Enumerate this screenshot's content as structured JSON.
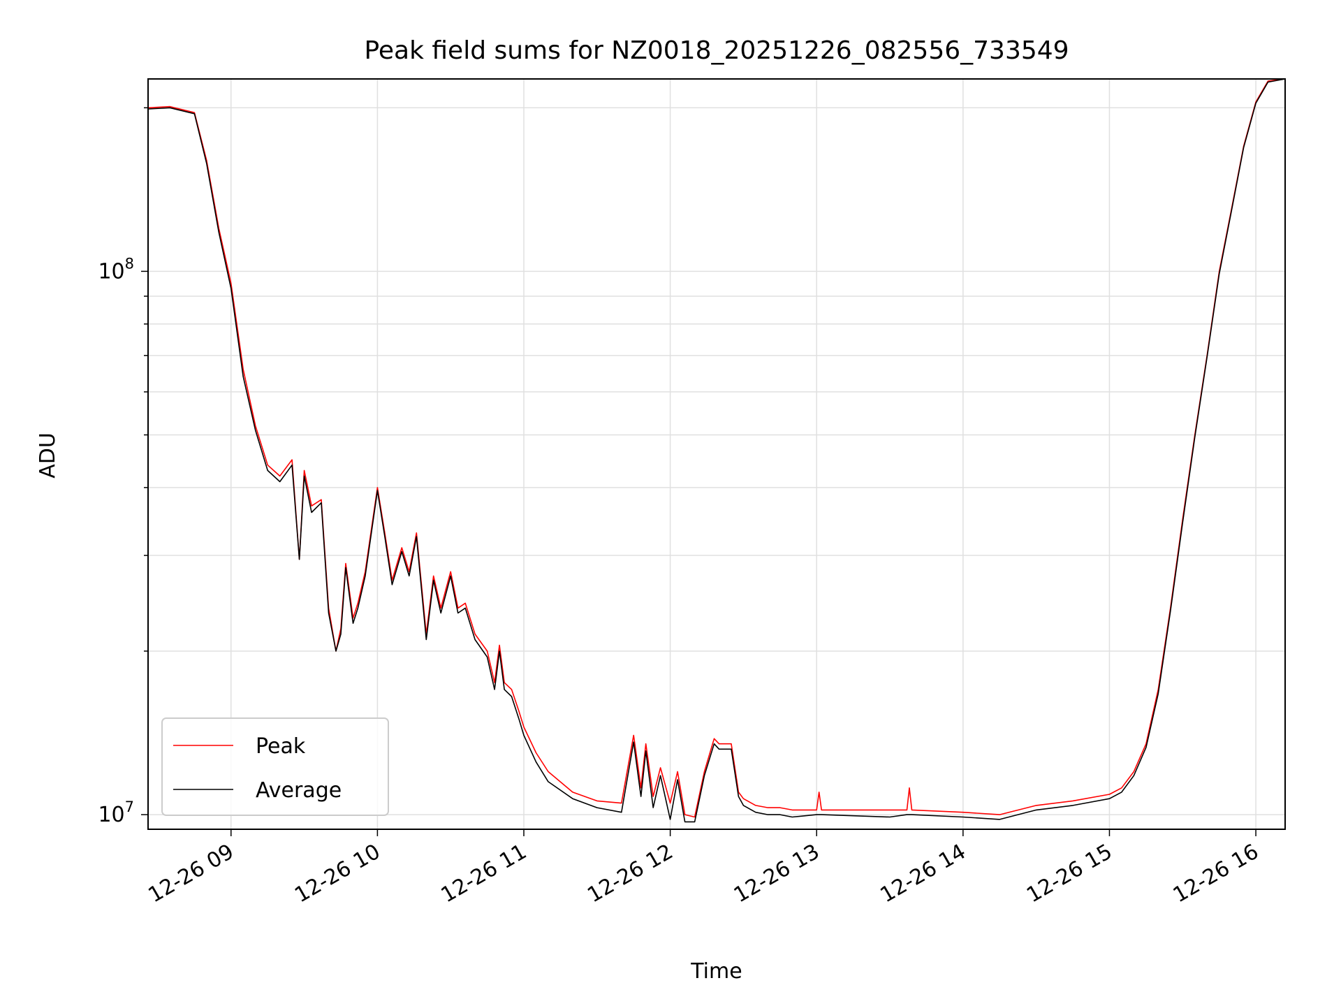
{
  "chart_data": {
    "type": "line",
    "title": "Peak field sums for NZ0018_20251226_082556_733549",
    "xlabel": "Time",
    "ylabel": "ADU",
    "yscale": "log",
    "grid": true,
    "legend_position": "lower-left",
    "xlim": [
      "2025-12-26 08:26",
      "2025-12-26 16:12"
    ],
    "ylim": [
      9400000,
      226000000
    ],
    "x_ticks": [
      {
        "value": "2025-12-26 09:00",
        "label": "12-26 09"
      },
      {
        "value": "2025-12-26 10:00",
        "label": "12-26 10"
      },
      {
        "value": "2025-12-26 11:00",
        "label": "12-26 11"
      },
      {
        "value": "2025-12-26 12:00",
        "label": "12-26 12"
      },
      {
        "value": "2025-12-26 13:00",
        "label": "12-26 13"
      },
      {
        "value": "2025-12-26 14:00",
        "label": "12-26 14"
      },
      {
        "value": "2025-12-26 15:00",
        "label": "12-26 15"
      },
      {
        "value": "2025-12-26 16:00",
        "label": "12-26 16"
      }
    ],
    "y_ticks": [
      {
        "value": 10000000,
        "base": "10",
        "exp": "7"
      },
      {
        "value": 100000000,
        "base": "10",
        "exp": "8"
      }
    ],
    "series": [
      {
        "name": "Peak",
        "color": "#ff0000",
        "x": [
          "2025-12-26 08:26",
          "2025-12-26 08:35",
          "2025-12-26 08:45",
          "2025-12-26 08:50",
          "2025-12-26 08:55",
          "2025-12-26 09:00",
          "2025-12-26 09:05",
          "2025-12-26 09:10",
          "2025-12-26 09:15",
          "2025-12-26 09:20",
          "2025-12-26 09:25",
          "2025-12-26 09:28",
          "2025-12-26 09:30",
          "2025-12-26 09:33",
          "2025-12-26 09:37",
          "2025-12-26 09:40",
          "2025-12-26 09:43",
          "2025-12-26 09:45",
          "2025-12-26 09:47",
          "2025-12-26 09:50",
          "2025-12-26 09:52",
          "2025-12-26 09:55",
          "2025-12-26 10:00",
          "2025-12-26 10:03",
          "2025-12-26 10:06",
          "2025-12-26 10:10",
          "2025-12-26 10:13",
          "2025-12-26 10:16",
          "2025-12-26 10:20",
          "2025-12-26 10:23",
          "2025-12-26 10:26",
          "2025-12-26 10:30",
          "2025-12-26 10:33",
          "2025-12-26 10:36",
          "2025-12-26 10:40",
          "2025-12-26 10:45",
          "2025-12-26 10:48",
          "2025-12-26 10:50",
          "2025-12-26 10:52",
          "2025-12-26 10:55",
          "2025-12-26 10:58",
          "2025-12-26 11:00",
          "2025-12-26 11:05",
          "2025-12-26 11:10",
          "2025-12-26 11:20",
          "2025-12-26 11:30",
          "2025-12-26 11:40",
          "2025-12-26 11:45",
          "2025-12-26 11:48",
          "2025-12-26 11:50",
          "2025-12-26 11:53",
          "2025-12-26 11:56",
          "2025-12-26 12:00",
          "2025-12-26 12:03",
          "2025-12-26 12:06",
          "2025-12-26 12:10",
          "2025-12-26 12:14",
          "2025-12-26 12:18",
          "2025-12-26 12:20",
          "2025-12-26 12:25",
          "2025-12-26 12:28",
          "2025-12-26 12:30",
          "2025-12-26 12:35",
          "2025-12-26 12:40",
          "2025-12-26 12:45",
          "2025-12-26 12:50",
          "2025-12-26 13:00",
          "2025-12-26 13:01",
          "2025-12-26 13:02",
          "2025-12-26 13:30",
          "2025-12-26 13:37",
          "2025-12-26 13:38",
          "2025-12-26 13:39",
          "2025-12-26 14:00",
          "2025-12-26 14:15",
          "2025-12-26 14:30",
          "2025-12-26 14:45",
          "2025-12-26 15:00",
          "2025-12-26 15:05",
          "2025-12-26 15:10",
          "2025-12-26 15:15",
          "2025-12-26 15:20",
          "2025-12-26 15:25",
          "2025-12-26 15:30",
          "2025-12-26 15:35",
          "2025-12-26 15:40",
          "2025-12-26 15:45",
          "2025-12-26 15:50",
          "2025-12-26 15:55",
          "2025-12-26 16:00",
          "2025-12-26 16:05",
          "2025-12-26 16:12"
        ],
        "y": [
          200000000,
          201000000,
          196000000,
          160000000,
          120000000,
          95000000,
          66000000,
          52000000,
          44000000,
          42000000,
          45000000,
          29500000,
          43000000,
          37000000,
          38000000,
          24000000,
          20000000,
          22000000,
          29000000,
          23000000,
          24500000,
          28000000,
          40000000,
          33000000,
          27000000,
          31000000,
          28000000,
          33000000,
          21500000,
          27500000,
          24000000,
          28000000,
          24000000,
          24500000,
          21500000,
          20000000,
          17500000,
          20500000,
          17500000,
          17000000,
          15500000,
          14500000,
          13000000,
          12000000,
          11000000,
          10600000,
          10500000,
          14000000,
          11200000,
          13500000,
          10800000,
          12200000,
          10500000,
          12000000,
          10000000,
          9900000,
          12000000,
          13800000,
          13500000,
          13500000,
          11000000,
          10700000,
          10400000,
          10300000,
          10300000,
          10200000,
          10200000,
          11000000,
          10200000,
          10200000,
          10200000,
          11200000,
          10200000,
          10100000,
          10000000,
          10400000,
          10600000,
          10900000,
          11200000,
          12000000,
          13500000,
          17000000,
          24000000,
          35000000,
          50000000,
          70000000,
          100000000,
          130000000,
          170000000,
          205000000,
          224000000,
          226000000
        ]
      },
      {
        "name": "Average",
        "color": "#000000",
        "x": [
          "2025-12-26 08:26",
          "2025-12-26 08:35",
          "2025-12-26 08:45",
          "2025-12-26 08:50",
          "2025-12-26 08:55",
          "2025-12-26 09:00",
          "2025-12-26 09:05",
          "2025-12-26 09:10",
          "2025-12-26 09:15",
          "2025-12-26 09:20",
          "2025-12-26 09:25",
          "2025-12-26 09:28",
          "2025-12-26 09:30",
          "2025-12-26 09:33",
          "2025-12-26 09:37",
          "2025-12-26 09:40",
          "2025-12-26 09:43",
          "2025-12-26 09:45",
          "2025-12-26 09:47",
          "2025-12-26 09:50",
          "2025-12-26 09:52",
          "2025-12-26 09:55",
          "2025-12-26 10:00",
          "2025-12-26 10:03",
          "2025-12-26 10:06",
          "2025-12-26 10:10",
          "2025-12-26 10:13",
          "2025-12-26 10:16",
          "2025-12-26 10:20",
          "2025-12-26 10:23",
          "2025-12-26 10:26",
          "2025-12-26 10:30",
          "2025-12-26 10:33",
          "2025-12-26 10:36",
          "2025-12-26 10:40",
          "2025-12-26 10:45",
          "2025-12-26 10:48",
          "2025-12-26 10:50",
          "2025-12-26 10:52",
          "2025-12-26 10:55",
          "2025-12-26 10:58",
          "2025-12-26 11:00",
          "2025-12-26 11:05",
          "2025-12-26 11:10",
          "2025-12-26 11:20",
          "2025-12-26 11:30",
          "2025-12-26 11:40",
          "2025-12-26 11:45",
          "2025-12-26 11:48",
          "2025-12-26 11:50",
          "2025-12-26 11:53",
          "2025-12-26 11:56",
          "2025-12-26 12:00",
          "2025-12-26 12:03",
          "2025-12-26 12:06",
          "2025-12-26 12:10",
          "2025-12-26 12:14",
          "2025-12-26 12:18",
          "2025-12-26 12:20",
          "2025-12-26 12:25",
          "2025-12-26 12:28",
          "2025-12-26 12:30",
          "2025-12-26 12:35",
          "2025-12-26 12:40",
          "2025-12-26 12:45",
          "2025-12-26 12:50",
          "2025-12-26 13:00",
          "2025-12-26 13:01",
          "2025-12-26 13:02",
          "2025-12-26 13:30",
          "2025-12-26 13:37",
          "2025-12-26 13:38",
          "2025-12-26 13:39",
          "2025-12-26 14:00",
          "2025-12-26 14:15",
          "2025-12-26 14:30",
          "2025-12-26 14:45",
          "2025-12-26 15:00",
          "2025-12-26 15:05",
          "2025-12-26 15:10",
          "2025-12-26 15:15",
          "2025-12-26 15:20",
          "2025-12-26 15:25",
          "2025-12-26 15:30",
          "2025-12-26 15:35",
          "2025-12-26 15:40",
          "2025-12-26 15:45",
          "2025-12-26 15:50",
          "2025-12-26 15:55",
          "2025-12-26 16:00",
          "2025-12-26 16:05",
          "2025-12-26 16:12"
        ],
        "y": [
          199000000,
          200000000,
          195000000,
          158000000,
          118000000,
          93000000,
          64000000,
          51000000,
          43000000,
          41000000,
          44000000,
          29500000,
          42000000,
          36000000,
          37500000,
          23500000,
          20000000,
          21500000,
          28500000,
          22500000,
          24000000,
          27500000,
          39500000,
          32500000,
          26500000,
          30500000,
          27500000,
          32500000,
          21000000,
          27000000,
          23500000,
          27500000,
          23500000,
          24000000,
          21000000,
          19500000,
          17000000,
          20000000,
          17000000,
          16500000,
          15000000,
          14000000,
          12500000,
          11500000,
          10700000,
          10300000,
          10100000,
          13600000,
          10800000,
          13100000,
          10300000,
          11800000,
          9800000,
          11600000,
          9700000,
          9700000,
          11800000,
          13500000,
          13200000,
          13200000,
          10800000,
          10400000,
          10100000,
          10000000,
          10000000,
          9900000,
          10000000,
          10000000,
          10000000,
          9900000,
          10000000,
          10000000,
          10000000,
          9900000,
          9800000,
          10200000,
          10400000,
          10700000,
          11000000,
          11800000,
          13300000,
          16700000,
          23700000,
          34500000,
          49500000,
          69500000,
          99000000,
          129000000,
          169000000,
          204000000,
          223000000,
          226000000
        ]
      }
    ]
  }
}
